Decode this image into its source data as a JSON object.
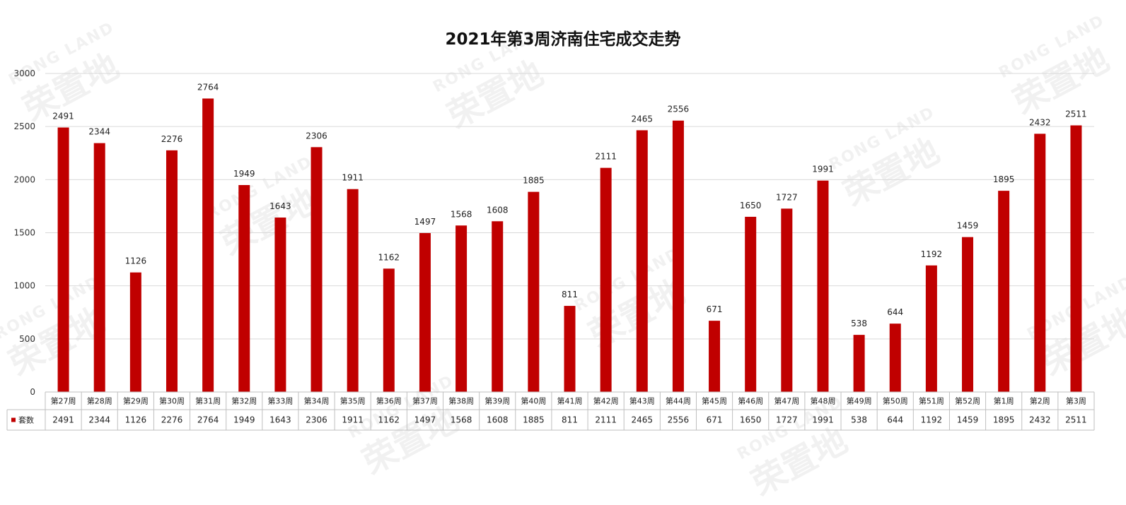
{
  "watermark": {
    "en": "RONG LAND",
    "cn": "荣置地"
  },
  "chart_data": {
    "type": "bar",
    "title": "2021年第3周济南住宅成交走势",
    "xlabel": "",
    "ylabel": "",
    "ylim": [
      0,
      3000
    ],
    "yticks": [
      0,
      500,
      1000,
      1500,
      2000,
      2500,
      3000
    ],
    "grid": true,
    "bar_color": "#c00000",
    "categories": [
      "第27周",
      "第28周",
      "第29周",
      "第30周",
      "第31周",
      "第32周",
      "第33周",
      "第34周",
      "第35周",
      "第36周",
      "第37周",
      "第38周",
      "第39周",
      "第40周",
      "第41周",
      "第42周",
      "第43周",
      "第44周",
      "第45周",
      "第46周",
      "第47周",
      "第48周",
      "第49周",
      "第50周",
      "第51周",
      "第52周",
      "第1周",
      "第2周",
      "第3周"
    ],
    "series": [
      {
        "name": "套数",
        "values": [
          2491,
          2344,
          1126,
          2276,
          2764,
          1949,
          1643,
          2306,
          1911,
          1162,
          1497,
          1568,
          1608,
          1885,
          811,
          2111,
          2465,
          2556,
          671,
          1650,
          1727,
          1991,
          538,
          644,
          1192,
          1459,
          1895,
          2432,
          2511
        ]
      }
    ],
    "data_table": true
  }
}
